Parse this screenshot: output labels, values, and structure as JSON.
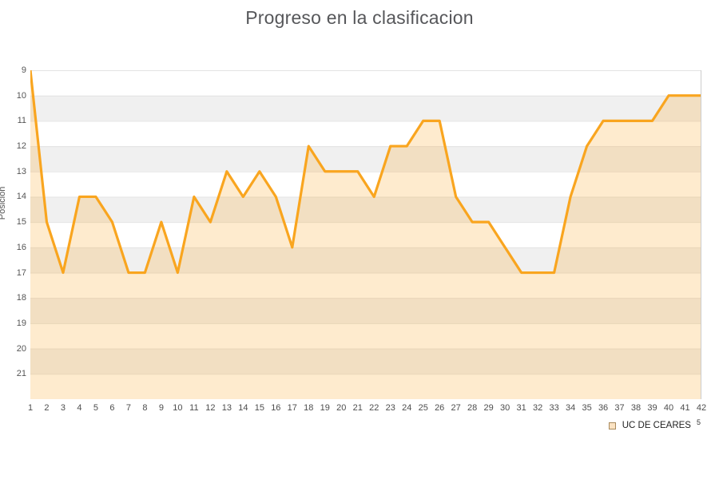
{
  "title": "Progreso en la clasificacion",
  "legend": {
    "label": "UC DE CEARES",
    "superscript": "5"
  },
  "chart_data": {
    "type": "area",
    "title": "Progreso en la clasificacion",
    "xlabel": "",
    "ylabel": "Posicion",
    "x": [
      1,
      2,
      3,
      4,
      5,
      6,
      7,
      8,
      9,
      10,
      11,
      12,
      13,
      14,
      15,
      16,
      17,
      18,
      19,
      20,
      21,
      22,
      23,
      24,
      25,
      26,
      27,
      28,
      29,
      30,
      31,
      32,
      33,
      34,
      35,
      36,
      37,
      38,
      39,
      40,
      41,
      42
    ],
    "series": [
      {
        "name": "UC DE CEARES",
        "values": [
          9,
          15,
          17,
          14,
          14,
          15,
          17,
          17,
          15,
          17,
          14,
          15,
          13,
          14,
          13,
          14,
          16,
          12,
          13,
          13,
          13,
          14,
          12,
          12,
          11,
          11,
          14,
          15,
          15,
          16,
          17,
          17,
          17,
          14,
          12,
          11,
          11,
          11,
          11,
          10,
          10,
          10
        ]
      }
    ],
    "y_ticks": [
      9,
      10,
      11,
      12,
      13,
      14,
      15,
      16,
      17,
      18,
      19,
      20,
      21
    ],
    "ylim": [
      9,
      22
    ],
    "y_axis_inverted": true,
    "grid": "horizontal-bands",
    "legend_position": "bottom-right",
    "colors": {
      "line": "#f9a51f",
      "area_fill": "rgba(249,166,32,0.22)",
      "band_light": "#ffffff",
      "band_dark": "#f0f0f0",
      "gridline": "#e3e3e3",
      "plot_right_border": "#cccccc",
      "title_text": "#56575a",
      "axis_text": "#555555"
    }
  }
}
